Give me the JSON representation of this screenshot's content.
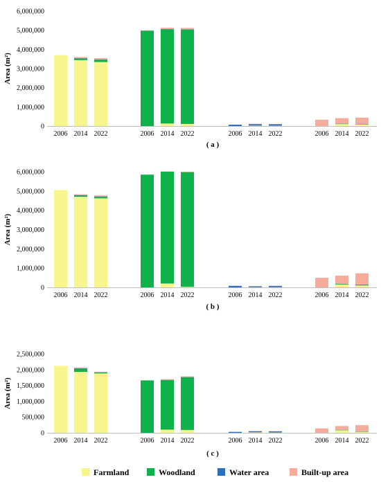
{
  "legend": [
    {
      "name": "Farmland",
      "color": "#f8f58c"
    },
    {
      "name": "Woodland",
      "color": "#0fb14a"
    },
    {
      "name": "Water area",
      "color": "#2c6fbf"
    },
    {
      "name": "Built-up area",
      "color": "#f5ac9b"
    }
  ],
  "chart_data": [
    {
      "type": "bar",
      "caption": "( a )",
      "ylabel": "Area (m²)",
      "ylim": [
        0,
        6000000
      ],
      "yticks": [
        "0",
        "1,000,000",
        "2,000,000",
        "3,000,000",
        "4,000,000",
        "5,000,000",
        "6,000,000"
      ],
      "categories": [
        "2006",
        "2014",
        "2022"
      ],
      "groups": [
        {
          "name": "Farmland",
          "stacks": [
            [
              [
                "Farmland",
                3700000
              ]
            ],
            [
              [
                "Farmland",
                3440000
              ],
              [
                "Woodland",
                80000
              ],
              [
                "Water area",
                20000
              ],
              [
                "Built-up area",
                60000
              ]
            ],
            [
              [
                "Farmland",
                3340000
              ],
              [
                "Woodland",
                120000
              ],
              [
                "Water area",
                20000
              ],
              [
                "Built-up area",
                60000
              ]
            ]
          ]
        },
        {
          "name": "Woodland",
          "stacks": [
            [
              [
                "Woodland",
                4980000
              ],
              [
                "Built-up area",
                20000
              ]
            ],
            [
              [
                "Farmland",
                130000
              ],
              [
                "Woodland",
                4920000
              ],
              [
                "Water area",
                10000
              ],
              [
                "Built-up area",
                70000
              ]
            ],
            [
              [
                "Farmland",
                110000
              ],
              [
                "Woodland",
                4930000
              ],
              [
                "Water area",
                10000
              ],
              [
                "Built-up area",
                70000
              ]
            ]
          ]
        },
        {
          "name": "Water area",
          "stacks": [
            [
              [
                "Water area",
                70000
              ]
            ],
            [
              [
                "Farmland",
                20000
              ],
              [
                "Water area",
                80000
              ],
              [
                "Built-up area",
                20000
              ]
            ],
            [
              [
                "Farmland",
                15000
              ],
              [
                "Water area",
                80000
              ],
              [
                "Built-up area",
                15000
              ]
            ]
          ]
        },
        {
          "name": "Built-up area",
          "stacks": [
            [
              [
                "Built-up area",
                330000
              ]
            ],
            [
              [
                "Farmland",
                100000
              ],
              [
                "Woodland",
                20000
              ],
              [
                "Water area",
                10000
              ],
              [
                "Built-up area",
                280000
              ]
            ],
            [
              [
                "Farmland",
                80000
              ],
              [
                "Woodland",
                20000
              ],
              [
                "Water area",
                10000
              ],
              [
                "Built-up area",
                330000
              ]
            ]
          ]
        }
      ]
    },
    {
      "type": "bar",
      "caption": "( b )",
      "ylabel": "Area (m²)",
      "ylim": [
        0,
        6000000
      ],
      "yticks": [
        "0",
        "1,000,000",
        "2,000,000",
        "3,000,000",
        "4,000,000",
        "5,000,000",
        "6,000,000"
      ],
      "categories": [
        "2006",
        "2014",
        "2022"
      ],
      "groups": [
        {
          "name": "Farmland",
          "stacks": [
            [
              [
                "Farmland",
                5050000
              ]
            ],
            [
              [
                "Farmland",
                4700000
              ],
              [
                "Woodland",
                60000
              ],
              [
                "Water area",
                20000
              ],
              [
                "Built-up area",
                50000
              ]
            ],
            [
              [
                "Farmland",
                4620000
              ],
              [
                "Woodland",
                80000
              ],
              [
                "Water area",
                20000
              ],
              [
                "Built-up area",
                50000
              ]
            ]
          ]
        },
        {
          "name": "Woodland",
          "stacks": [
            [
              [
                "Woodland",
                5850000
              ]
            ],
            [
              [
                "Farmland",
                200000
              ],
              [
                "Woodland",
                5800000
              ],
              [
                "Built-up area",
                20000
              ]
            ],
            [
              [
                "Farmland",
                30000
              ],
              [
                "Woodland",
                5950000
              ],
              [
                "Built-up area",
                20000
              ]
            ]
          ]
        },
        {
          "name": "Water area",
          "stacks": [
            [
              [
                "Water area",
                80000
              ]
            ],
            [
              [
                "Farmland",
                10000
              ],
              [
                "Water area",
                50000
              ],
              [
                "Built-up area",
                10000
              ]
            ],
            [
              [
                "Farmland",
                10000
              ],
              [
                "Water area",
                70000
              ],
              [
                "Built-up area",
                10000
              ]
            ]
          ]
        },
        {
          "name": "Built-up area",
          "stacks": [
            [
              [
                "Built-up area",
                500000
              ]
            ],
            [
              [
                "Farmland",
                150000
              ],
              [
                "Woodland",
                30000
              ],
              [
                "Water area",
                10000
              ],
              [
                "Built-up area",
                420000
              ]
            ],
            [
              [
                "Farmland",
                100000
              ],
              [
                "Woodland",
                40000
              ],
              [
                "Water area",
                10000
              ],
              [
                "Built-up area",
                580000
              ]
            ]
          ]
        }
      ]
    },
    {
      "type": "bar",
      "caption": "( c )",
      "ylabel": "Area (m²)",
      "ylim": [
        0,
        2500000
      ],
      "yticks": [
        "0",
        "500,000",
        "1,000,000",
        "1,500,000",
        "2,000,000",
        "2,500,000"
      ],
      "categories": [
        "2006",
        "2014",
        "2022"
      ],
      "groups": [
        {
          "name": "Farmland",
          "stacks": [
            [
              [
                "Farmland",
                2120000
              ]
            ],
            [
              [
                "Farmland",
                1930000
              ],
              [
                "Woodland",
                100000
              ],
              [
                "Water area",
                10000
              ],
              [
                "Built-up area",
                30000
              ]
            ],
            [
              [
                "Farmland",
                1880000
              ],
              [
                "Woodland",
                30000
              ],
              [
                "Water area",
                5000
              ],
              [
                "Built-up area",
                20000
              ]
            ]
          ]
        },
        {
          "name": "Woodland",
          "stacks": [
            [
              [
                "Woodland",
                1660000
              ]
            ],
            [
              [
                "Farmland",
                100000
              ],
              [
                "Woodland",
                1570000
              ],
              [
                "Water area",
                5000
              ],
              [
                "Built-up area",
                25000
              ]
            ],
            [
              [
                "Farmland",
                90000
              ],
              [
                "Woodland",
                1670000
              ],
              [
                "Water area",
                5000
              ],
              [
                "Built-up area",
                25000
              ]
            ]
          ]
        },
        {
          "name": "Water area",
          "stacks": [
            [
              [
                "Water area",
                30000
              ]
            ],
            [
              [
                "Farmland",
                15000
              ],
              [
                "Water area",
                35000
              ],
              [
                "Built-up area",
                10000
              ]
            ],
            [
              [
                "Farmland",
                10000
              ],
              [
                "Water area",
                35000
              ],
              [
                "Built-up area",
                10000
              ]
            ]
          ]
        },
        {
          "name": "Built-up area",
          "stacks": [
            [
              [
                "Built-up area",
                140000
              ]
            ],
            [
              [
                "Farmland",
                80000
              ],
              [
                "Woodland",
                10000
              ],
              [
                "Water area",
                5000
              ],
              [
                "Built-up area",
                120000
              ]
            ],
            [
              [
                "Farmland",
                30000
              ],
              [
                "Woodland",
                10000
              ],
              [
                "Water area",
                5000
              ],
              [
                "Built-up area",
                200000
              ]
            ]
          ]
        }
      ]
    }
  ]
}
